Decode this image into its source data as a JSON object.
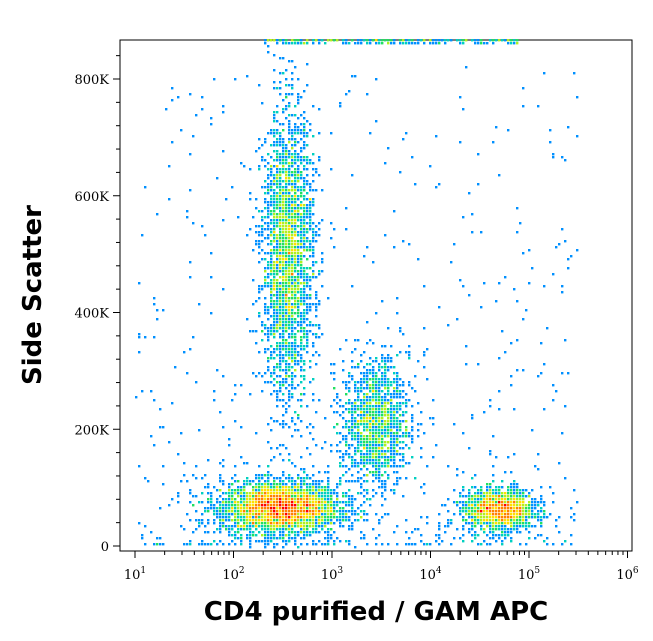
{
  "chart_data": {
    "type": "scatter",
    "style": "density dot plot (flow cytometry)",
    "xlabel": "CD4 purified / GAM APC",
    "ylabel": "Side Scatter",
    "x_scale": "log",
    "xlim": [
      10,
      1000000
    ],
    "ylim": [
      0,
      860000
    ],
    "x_ticks": [
      {
        "base": "10",
        "exp": "1",
        "value": 10
      },
      {
        "base": "10",
        "exp": "2",
        "value": 100
      },
      {
        "base": "10",
        "exp": "3",
        "value": 1000
      },
      {
        "base": "10",
        "exp": "4",
        "value": 10000
      },
      {
        "base": "10",
        "exp": "5",
        "value": 100000
      },
      {
        "base": "10",
        "exp": "6",
        "value": 1000000
      }
    ],
    "y_ticks": [
      {
        "label": "0",
        "value": 0
      },
      {
        "label": "200K",
        "value": 200000
      },
      {
        "label": "400K",
        "value": 400000
      },
      {
        "label": "600K",
        "value": 600000
      },
      {
        "label": "800K",
        "value": 800000
      }
    ],
    "density_colors": [
      "#0000ff",
      "#0090ff",
      "#00d0c0",
      "#20e060",
      "#b0f020",
      "#ffe000",
      "#ff8000",
      "#ff0000"
    ],
    "populations": [
      {
        "x": 300,
        "y": 65000,
        "x_spread_decades": 0.3,
        "y_spread": 22000,
        "count": 3400,
        "peak": "yellow-orange"
      },
      {
        "x": 360,
        "y": 500000,
        "x_spread_decades": 0.13,
        "y_spread": 120000,
        "count": 2600,
        "peak": "green"
      },
      {
        "x": 2800,
        "y": 210000,
        "x_spread_decades": 0.17,
        "y_spread": 55000,
        "count": 1300,
        "peak": "green-yellow"
      },
      {
        "x": 50000,
        "y": 62000,
        "x_spread_decades": 0.18,
        "y_spread": 18000,
        "count": 1500,
        "peak": "red"
      }
    ]
  }
}
